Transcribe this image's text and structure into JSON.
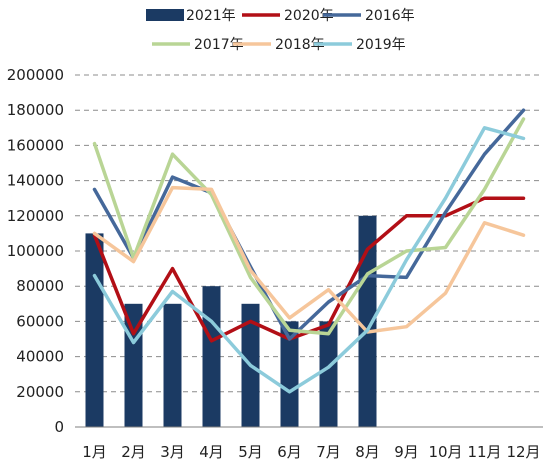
{
  "chart_data": {
    "type": "bar",
    "categories": [
      "1月",
      "2月",
      "3月",
      "4月",
      "5月",
      "6月",
      "7月",
      "8月",
      "9月",
      "10月",
      "11月",
      "12月"
    ],
    "ylim": [
      0,
      200000
    ],
    "yticks": [
      "0",
      "20000",
      "40000",
      "60000",
      "80000",
      "100000",
      "120000",
      "140000",
      "160000",
      "180000",
      "200000"
    ],
    "grid": true,
    "legend_position": "top",
    "bar_series": {
      "name": "2021年",
      "color": "#1b3a63",
      "values": [
        110000,
        70000,
        70000,
        80000,
        70000,
        60000,
        60000,
        120000
      ]
    },
    "line_series": [
      {
        "name": "2020年",
        "color": "#b20f16",
        "values": [
          109000,
          53000,
          90000,
          49000,
          60000,
          50000,
          58000,
          101000,
          120000,
          120000,
          130000,
          130000
        ]
      },
      {
        "name": "2016年",
        "color": "#45689a",
        "values": [
          135000,
          96000,
          142000,
          133000,
          91000,
          50000,
          71000,
          86000,
          85000,
          122000,
          155000,
          180000
        ]
      },
      {
        "name": "2017年",
        "color": "#b9d595",
        "values": [
          161000,
          96000,
          155000,
          132000,
          85000,
          55000,
          53000,
          87000,
          100000,
          102000,
          135000,
          175000
        ]
      },
      {
        "name": "2018年",
        "color": "#f6c69b",
        "values": [
          110000,
          94000,
          136000,
          135000,
          89000,
          62000,
          78000,
          54000,
          57000,
          76000,
          116000,
          109000
        ]
      },
      {
        "name": "2019年",
        "color": "#8ccbdb",
        "values": [
          86000,
          48000,
          77000,
          60000,
          35000,
          20000,
          34000,
          55000,
          95000,
          130000,
          170000,
          164000
        ]
      }
    ]
  }
}
